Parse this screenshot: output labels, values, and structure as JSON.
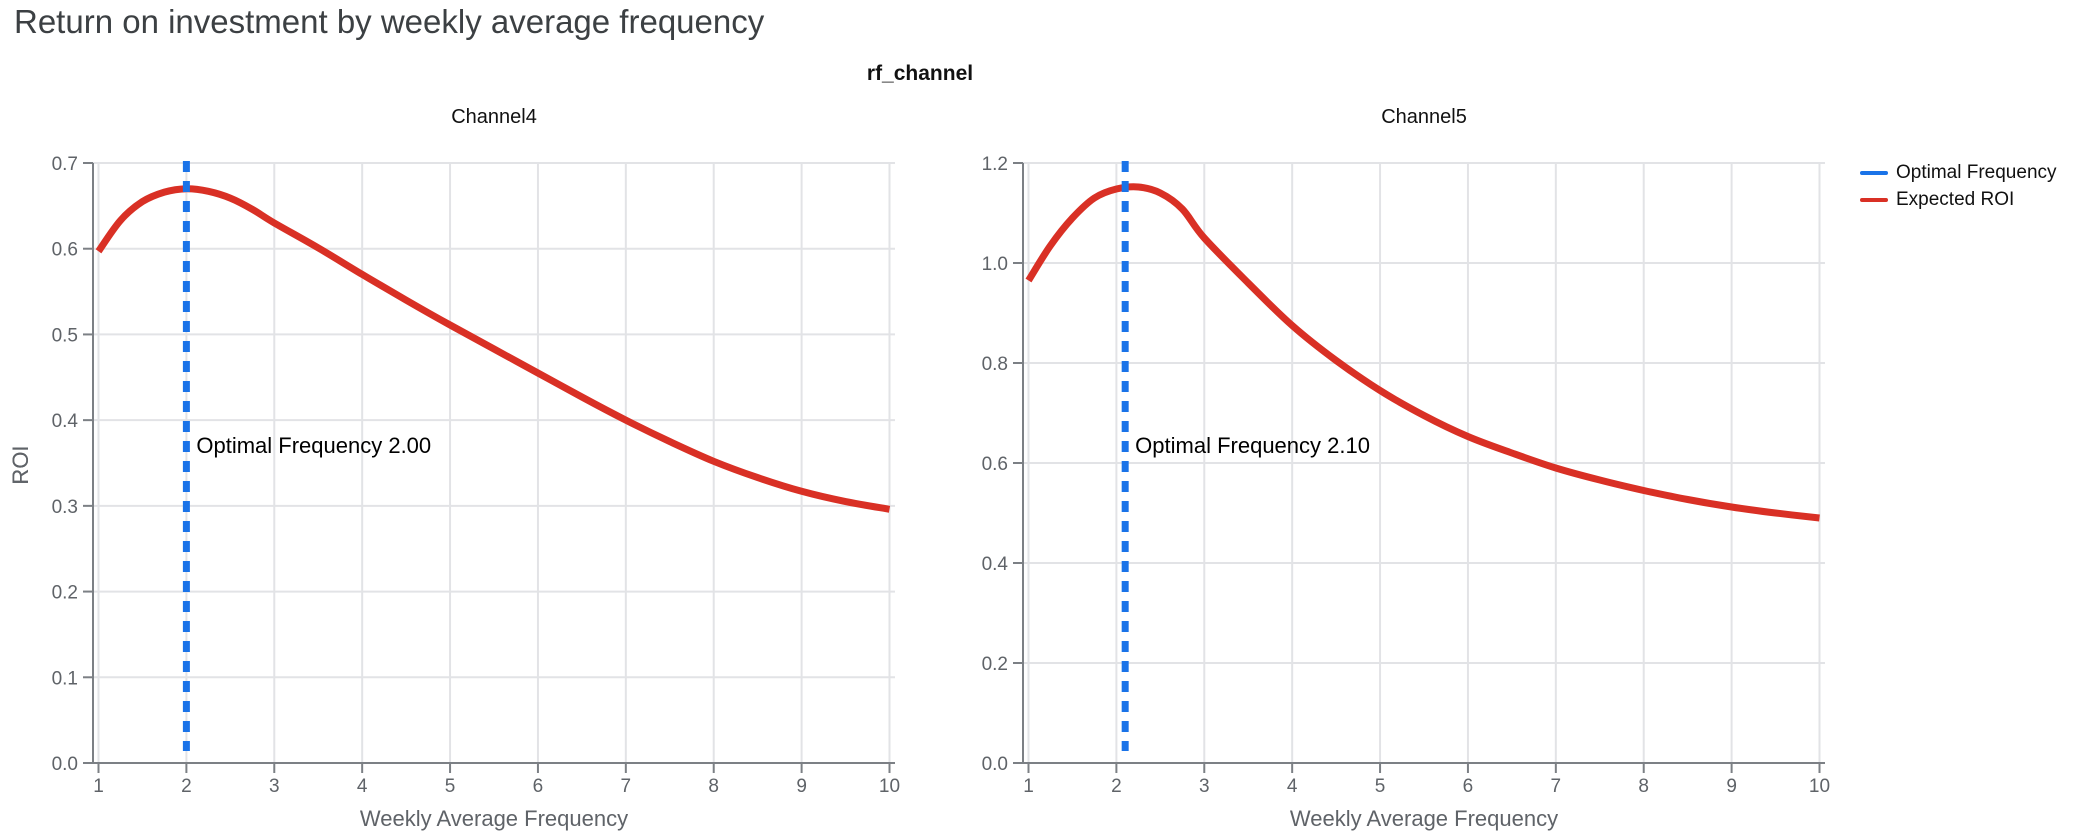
{
  "page": {
    "title": "Return on investment by weekly average frequency"
  },
  "figure": {
    "title": "rf_channel"
  },
  "legend": {
    "items": [
      {
        "label": "Optimal Frequency",
        "color": "#1a73e8"
      },
      {
        "label": "Expected ROI",
        "color": "#d93025"
      }
    ]
  },
  "colors": {
    "background": "#ffffff",
    "title": "#3c4043",
    "subplot_title": "#111111",
    "tick_label": "#5f6368",
    "axis_title": "#5f6368",
    "axis_line": "#7c8085",
    "gridline": "#e2e3e6",
    "roi_line": "#d93025",
    "optimal_line": "#1a73e8",
    "annotation": "#000000"
  },
  "chart_data": [
    {
      "type": "line",
      "title": "Channel4",
      "xlabel": "Weekly Average Frequency",
      "ylabel": "ROI",
      "xlim": [
        1,
        10
      ],
      "ylim": [
        0,
        0.7
      ],
      "xticks": [
        1,
        2,
        3,
        4,
        5,
        6,
        7,
        8,
        9,
        10
      ],
      "yticks": [
        0.0,
        0.1,
        0.2,
        0.3,
        0.4,
        0.5,
        0.6,
        0.7
      ],
      "grid": true,
      "legend_position": "top-right-outside",
      "optimal_frequency": 2.0,
      "annotation": "Optimal Frequency  2.00",
      "series": [
        {
          "name": "Expected ROI",
          "x": [
            1,
            1.25,
            1.5,
            1.75,
            2,
            2.25,
            2.5,
            2.75,
            3,
            3.5,
            4,
            4.5,
            5,
            5.5,
            6,
            6.5,
            7,
            7.5,
            8,
            8.5,
            9,
            9.5,
            10
          ],
          "y": [
            0.597,
            0.633,
            0.655,
            0.666,
            0.67,
            0.667,
            0.659,
            0.646,
            0.63,
            0.601,
            0.57,
            0.54,
            0.511,
            0.483,
            0.455,
            0.427,
            0.4,
            0.375,
            0.352,
            0.333,
            0.317,
            0.305,
            0.296
          ]
        }
      ]
    },
    {
      "type": "line",
      "title": "Channel5",
      "xlabel": "Weekly Average Frequency",
      "ylabel": "ROI",
      "xlim": [
        1,
        10
      ],
      "ylim": [
        0,
        1.2
      ],
      "xticks": [
        1,
        2,
        3,
        4,
        5,
        6,
        7,
        8,
        9,
        10
      ],
      "yticks": [
        0.0,
        0.2,
        0.4,
        0.6,
        0.8,
        1.0,
        1.2
      ],
      "grid": true,
      "legend_position": "top-right-outside",
      "optimal_frequency": 2.1,
      "annotation": "Optimal Frequency  2.10",
      "series": [
        {
          "name": "Expected ROI",
          "x": [
            1,
            1.25,
            1.5,
            1.75,
            2,
            2.25,
            2.5,
            2.75,
            3,
            3.5,
            4,
            4.5,
            5,
            5.5,
            6,
            6.5,
            7,
            7.5,
            8,
            8.5,
            9,
            9.5,
            10
          ],
          "y": [
            0.965,
            1.035,
            1.09,
            1.13,
            1.148,
            1.152,
            1.14,
            1.108,
            1.05,
            0.96,
            0.875,
            0.805,
            0.745,
            0.695,
            0.653,
            0.62,
            0.59,
            0.566,
            0.545,
            0.527,
            0.512,
            0.5,
            0.49
          ]
        }
      ]
    }
  ]
}
